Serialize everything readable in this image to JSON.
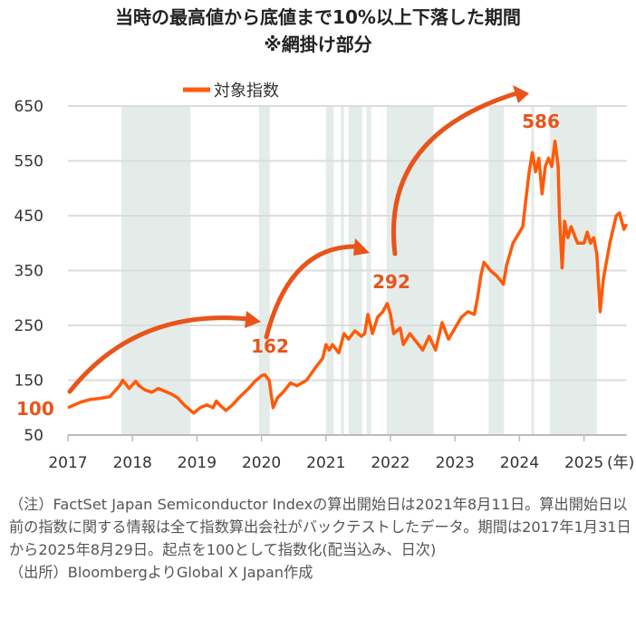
{
  "title": {
    "line1": "当時の最高値から底値まで10%以上下落した期間",
    "line2": "※網掛け部分"
  },
  "chart_data": {
    "type": "line",
    "title": "当時の最高値から底値まで10%以上下落した期間 ※網掛け部分",
    "xlabel": "(年)",
    "ylabel": "",
    "xlim": [
      2017,
      2025.66
    ],
    "ylim": [
      50,
      650
    ],
    "x_ticks": [
      "2017",
      "2018",
      "2019",
      "2020",
      "2021",
      "2022",
      "2023",
      "2024",
      "2025"
    ],
    "y_ticks": [
      "50",
      "150",
      "250",
      "350",
      "450",
      "550",
      "650"
    ],
    "grid": "horizontal",
    "legend": "top-center",
    "series_color": "#FF5A0A",
    "shade_color": "#E4ECEA",
    "annotation_color": "#E8541A",
    "series": [
      {
        "name": "対象指数",
        "x": [
          2017.0,
          2017.1,
          2017.2,
          2017.35,
          2017.5,
          2017.65,
          2017.8,
          2017.85,
          2017.95,
          2018.05,
          2018.1,
          2018.2,
          2018.3,
          2018.4,
          2018.5,
          2018.6,
          2018.7,
          2018.8,
          2018.9,
          2018.95,
          2019.05,
          2019.15,
          2019.25,
          2019.3,
          2019.35,
          2019.45,
          2019.55,
          2019.65,
          2019.8,
          2019.9,
          2020.0,
          2020.05,
          2020.12,
          2020.18,
          2020.25,
          2020.35,
          2020.45,
          2020.55,
          2020.7,
          2020.85,
          2020.95,
          2021.0,
          2021.05,
          2021.1,
          2021.2,
          2021.28,
          2021.35,
          2021.45,
          2021.55,
          2021.6,
          2021.65,
          2021.72,
          2021.8,
          2021.88,
          2021.95,
          2022.0,
          2022.05,
          2022.15,
          2022.2,
          2022.3,
          2022.4,
          2022.5,
          2022.6,
          2022.7,
          2022.8,
          2022.9,
          2023.0,
          2023.1,
          2023.2,
          2023.3,
          2023.35,
          2023.4,
          2023.45,
          2023.55,
          2023.65,
          2023.75,
          2023.8,
          2023.9,
          2023.95,
          2024.05,
          2024.1,
          2024.15,
          2024.2,
          2024.25,
          2024.3,
          2024.35,
          2024.4,
          2024.45,
          2024.5,
          2024.55,
          2024.6,
          2024.62,
          2024.66,
          2024.7,
          2024.75,
          2024.8,
          2024.9,
          2025.0,
          2025.05,
          2025.1,
          2025.15,
          2025.2,
          2025.25,
          2025.3,
          2025.4,
          2025.5,
          2025.55,
          2025.62,
          2025.66
        ],
        "values": [
          100,
          105,
          110,
          115,
          117,
          120,
          140,
          150,
          135,
          148,
          140,
          132,
          128,
          135,
          130,
          125,
          118,
          105,
          95,
          90,
          100,
          105,
          100,
          112,
          105,
          95,
          105,
          118,
          135,
          148,
          158,
          160,
          150,
          100,
          118,
          130,
          145,
          140,
          150,
          175,
          190,
          215,
          205,
          215,
          200,
          235,
          225,
          240,
          230,
          235,
          270,
          235,
          265,
          275,
          290,
          270,
          235,
          245,
          215,
          235,
          220,
          205,
          230,
          205,
          255,
          225,
          245,
          265,
          275,
          270,
          300,
          340,
          365,
          350,
          340,
          325,
          360,
          400,
          410,
          430,
          480,
          530,
          565,
          530,
          555,
          490,
          540,
          555,
          540,
          586,
          540,
          450,
          355,
          440,
          410,
          430,
          400,
          400,
          420,
          400,
          410,
          380,
          275,
          335,
          400,
          450,
          455,
          425,
          435
        ]
      }
    ],
    "shaded_periods": [
      [
        2017.83,
        2018.9
      ],
      [
        2019.96,
        2020.13
      ],
      [
        2021.0,
        2021.12
      ],
      [
        2021.23,
        2021.28
      ],
      [
        2021.35,
        2021.56
      ],
      [
        2021.63,
        2021.7
      ],
      [
        2021.94,
        2022.67
      ],
      [
        2023.52,
        2023.76
      ],
      [
        2024.18,
        2024.23
      ],
      [
        2024.47,
        2025.2
      ]
    ],
    "annotations": [
      {
        "text": "100",
        "x": 2017.0,
        "y": 100
      },
      {
        "text": "162",
        "x": 2020.05,
        "y": 162
      },
      {
        "text": "292",
        "x": 2021.95,
        "y": 292
      },
      {
        "text": "586",
        "x": 2024.55,
        "y": 586
      }
    ]
  },
  "notes": {
    "note": "（注）FactSet Japan Semiconductor Indexの算出開始日は2021年8月11日。算出開始日以前の指数に関する情報は全て指数算出会社がバックテストしたデータ。期間は2017年1月31日から2025年8月29日。起点を100として指数化(配当込み、日次)",
    "source": "（出所）BloombergよりGlobal X Japan作成"
  }
}
